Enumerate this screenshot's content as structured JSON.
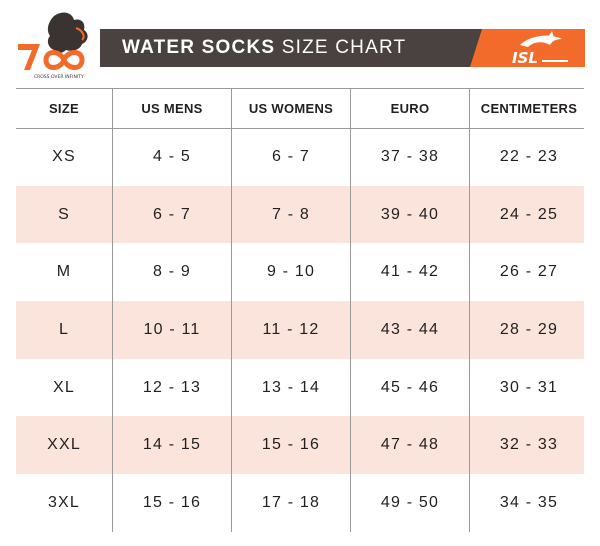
{
  "header": {
    "brand_logo": {
      "icon": "seven-infinity-logo-icon",
      "tagline": "CROSS OVER INFINITY"
    },
    "title_bold": "WATER SOCKS",
    "title_light": "SIZE CHART",
    "partner_logo": {
      "icon": "isl-dolphin-logo-icon",
      "text": "ISL"
    },
    "colors": {
      "banner_dark": "#4a4240",
      "banner_accent": "#f26b2a",
      "row_shade": "#fbe4dc"
    }
  },
  "table": {
    "columns": [
      "SIZE",
      "US MENS",
      "US WOMENS",
      "EURO",
      "CENTIMETERS"
    ],
    "rows": [
      [
        "XS",
        "4 - 5",
        "6 - 7",
        "37 - 38",
        "22 - 23"
      ],
      [
        "S",
        "6 - 7",
        "7 - 8",
        "39 - 40",
        "24 - 25"
      ],
      [
        "M",
        "8 - 9",
        "9 - 10",
        "41 - 42",
        "26 - 27"
      ],
      [
        "L",
        "10 - 11",
        "11 - 12",
        "43 - 44",
        "28 - 29"
      ],
      [
        "XL",
        "12 - 13",
        "13 - 14",
        "45 - 46",
        "30 - 31"
      ],
      [
        "XXL",
        "14 - 15",
        "15 - 16",
        "47 - 48",
        "32 - 33"
      ],
      [
        "3XL",
        "15 - 16",
        "17 - 18",
        "49 - 50",
        "34 - 35"
      ]
    ]
  }
}
